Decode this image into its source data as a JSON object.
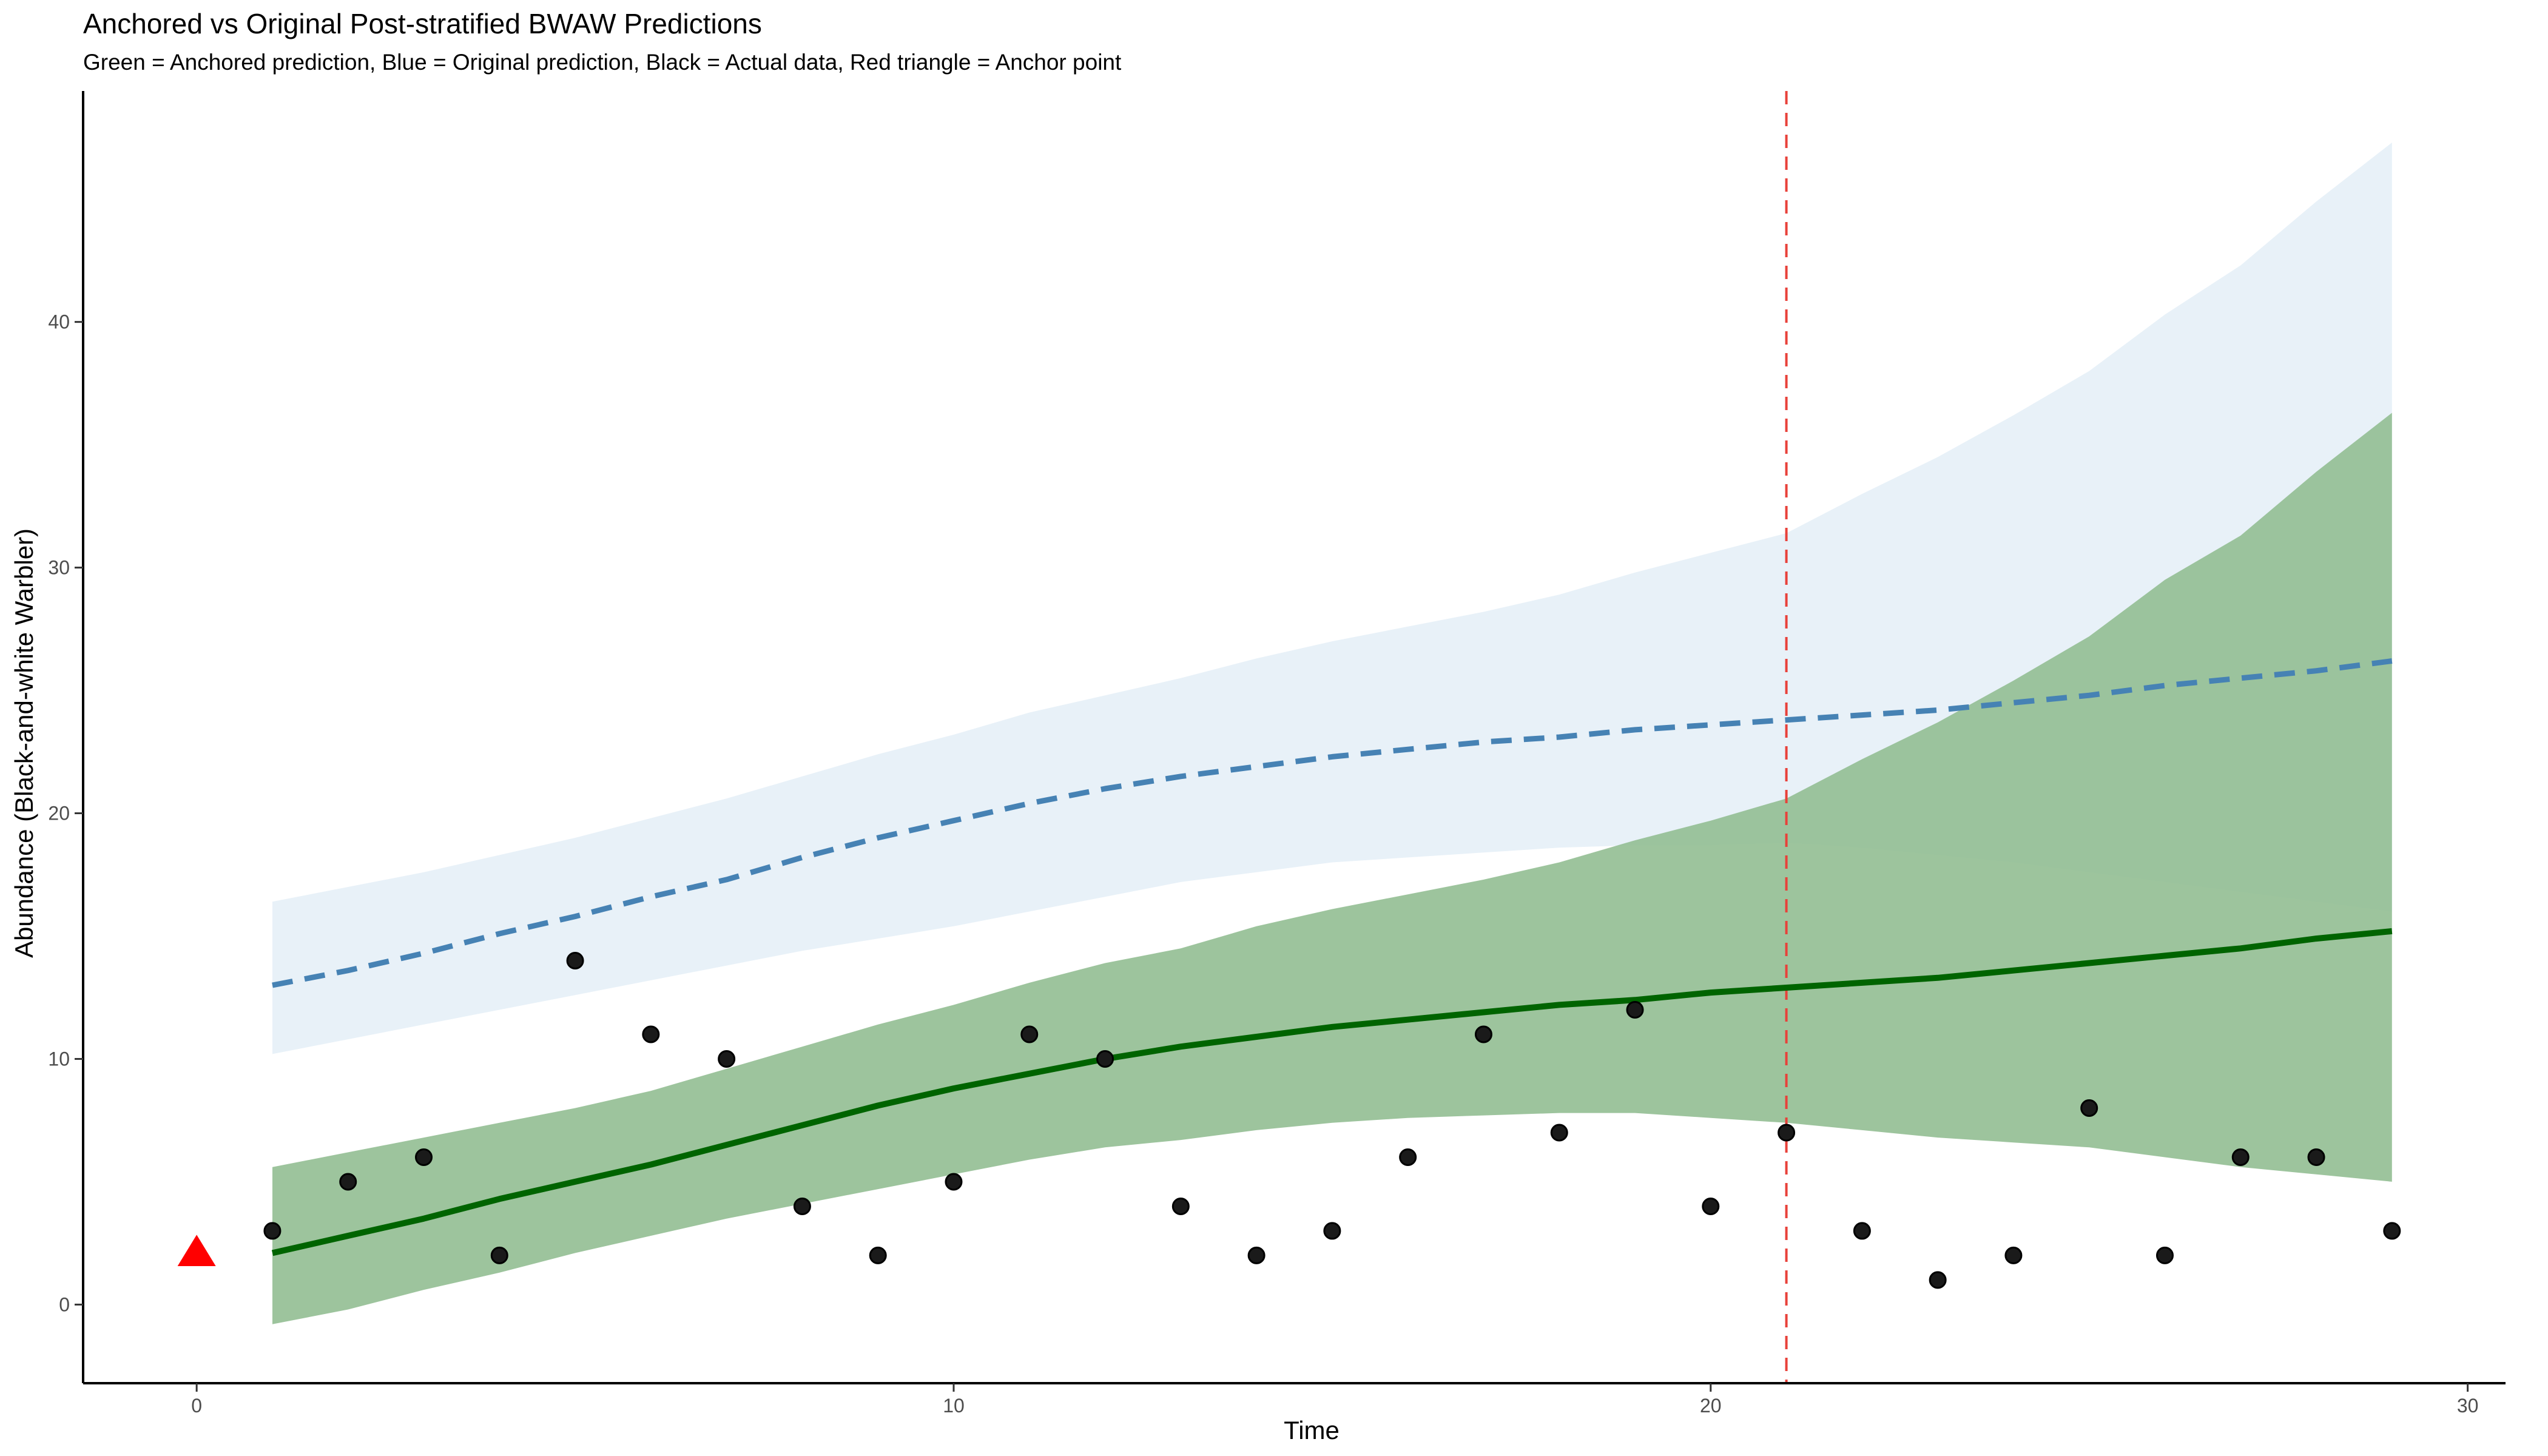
{
  "chart_data": {
    "type": "line",
    "title": "Anchored vs Original Post-stratified BWAW Predictions",
    "subtitle": "Green = Anchored prediction, Blue = Original prediction, Black = Actual data, Red triangle = Anchor point",
    "xlabel": "Time",
    "ylabel": "Abundance (Black-and-white Warbler)",
    "xlim": [
      -1.5,
      30.5
    ],
    "ylim": [
      -3.2,
      49.4
    ],
    "xticks": [
      0,
      10,
      20,
      30
    ],
    "yticks": [
      0,
      10,
      20,
      30,
      40
    ],
    "grid": false,
    "vline": {
      "x": 21,
      "color": "#e8413a"
    },
    "anchor_point": {
      "x": 0,
      "y": 2.1,
      "color": "#ff0000"
    },
    "original_band": {
      "x": [
        1,
        2,
        3,
        4,
        5,
        6,
        7,
        8,
        9,
        10,
        11,
        12,
        13,
        14,
        15,
        16,
        17,
        18,
        19,
        20,
        21,
        22,
        23,
        24,
        25,
        26,
        27,
        28,
        29
      ],
      "lower": [
        10.2,
        10.8,
        11.4,
        12.0,
        12.6,
        13.2,
        13.8,
        14.4,
        14.9,
        15.4,
        16.0,
        16.6,
        17.2,
        17.6,
        18.0,
        18.2,
        18.4,
        18.6,
        18.7,
        18.7,
        18.8,
        18.6,
        18.3,
        18.0,
        17.6,
        17.2,
        16.8,
        16.4,
        16.0
      ],
      "upper": [
        16.4,
        17.0,
        17.6,
        18.3,
        19.0,
        19.8,
        20.6,
        21.5,
        22.4,
        23.2,
        24.1,
        24.8,
        25.5,
        26.3,
        27.0,
        27.6,
        28.2,
        28.9,
        29.8,
        30.6,
        31.4,
        33.0,
        34.5,
        36.2,
        38.0,
        40.3,
        42.3,
        44.9,
        47.3
      ],
      "color": "#e8f1f8"
    },
    "anchored_band": {
      "x": [
        1,
        2,
        3,
        4,
        5,
        6,
        7,
        8,
        9,
        10,
        11,
        12,
        13,
        14,
        15,
        16,
        17,
        18,
        19,
        20,
        21,
        22,
        23,
        24,
        25,
        26,
        27,
        28,
        29
      ],
      "lower": [
        -0.8,
        -0.2,
        0.6,
        1.3,
        2.1,
        2.8,
        3.5,
        4.1,
        4.7,
        5.3,
        5.9,
        6.4,
        6.7,
        7.1,
        7.4,
        7.6,
        7.7,
        7.8,
        7.8,
        7.6,
        7.4,
        7.1,
        6.8,
        6.6,
        6.4,
        6.0,
        5.6,
        5.3,
        5.0
      ],
      "upper": [
        5.6,
        6.2,
        6.8,
        7.4,
        8.0,
        8.7,
        9.6,
        10.5,
        11.4,
        12.2,
        13.1,
        13.9,
        14.5,
        15.4,
        16.1,
        16.7,
        17.3,
        18.0,
        18.9,
        19.7,
        20.6,
        22.2,
        23.7,
        25.4,
        27.2,
        29.5,
        31.3,
        33.9,
        36.3
      ],
      "color": "#8fbc8f"
    },
    "series": [
      {
        "name": "Original prediction",
        "color": "#4682b4",
        "dash": true,
        "x": [
          1,
          2,
          3,
          4,
          5,
          6,
          7,
          8,
          9,
          10,
          11,
          12,
          13,
          14,
          15,
          16,
          17,
          18,
          19,
          20,
          21,
          22,
          23,
          24,
          25,
          26,
          27,
          28,
          29
        ],
        "y": [
          13.0,
          13.6,
          14.3,
          15.1,
          15.8,
          16.6,
          17.3,
          18.2,
          19.0,
          19.7,
          20.4,
          21.0,
          21.5,
          21.9,
          22.3,
          22.6,
          22.9,
          23.1,
          23.4,
          23.6,
          23.8,
          24.0,
          24.2,
          24.5,
          24.8,
          25.2,
          25.5,
          25.8,
          26.2
        ]
      },
      {
        "name": "Anchored prediction",
        "color": "#006400",
        "dash": false,
        "x": [
          1,
          2,
          3,
          4,
          5,
          6,
          7,
          8,
          9,
          10,
          11,
          12,
          13,
          14,
          15,
          16,
          17,
          18,
          19,
          20,
          21,
          22,
          23,
          24,
          25,
          26,
          27,
          28,
          29
        ],
        "y": [
          2.1,
          2.8,
          3.5,
          4.3,
          5.0,
          5.7,
          6.5,
          7.3,
          8.1,
          8.8,
          9.4,
          10.0,
          10.5,
          10.9,
          11.3,
          11.6,
          11.9,
          12.2,
          12.4,
          12.7,
          12.9,
          13.1,
          13.3,
          13.6,
          13.9,
          14.2,
          14.5,
          14.9,
          15.2
        ]
      }
    ],
    "actual_data": {
      "name": "Actual data",
      "color": "#1a1a1a",
      "x": [
        1,
        2,
        3,
        4,
        5,
        6,
        7,
        8,
        9,
        10,
        11,
        12,
        13,
        14,
        15,
        16,
        17,
        18,
        19,
        20,
        21,
        22,
        23,
        24,
        25,
        26,
        27,
        28,
        29
      ],
      "y": [
        3,
        5,
        6,
        2,
        14,
        11,
        10,
        4,
        2,
        5,
        11,
        10,
        4,
        2,
        3,
        6,
        11,
        7,
        12,
        4,
        7,
        3,
        1,
        2,
        8,
        2,
        6,
        6,
        3
      ]
    }
  }
}
